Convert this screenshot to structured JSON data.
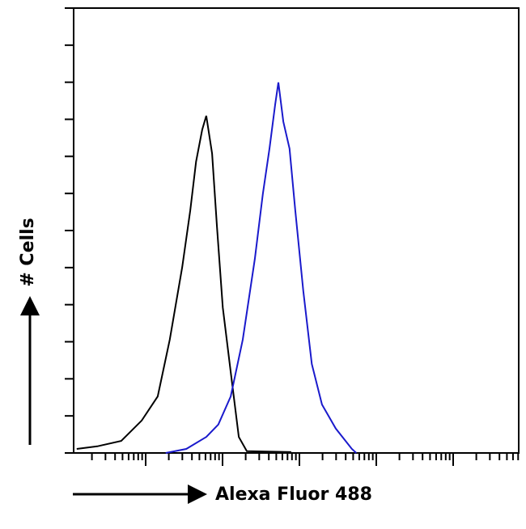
{
  "chart_data": {
    "type": "line",
    "x_label": "Alexa Fluor 488",
    "y_label": "# Cells",
    "xlim": [
      0,
      100
    ],
    "ylim": [
      0,
      100
    ],
    "series": [
      {
        "color": "#000000",
        "x": [
          0.7,
          5.3,
          10.7,
          15.3,
          18.9,
          21.6,
          24.4,
          26.2,
          27.5,
          28.9,
          29.8,
          31.1,
          32.2,
          33.5,
          35.3,
          37.1,
          38.9,
          48.9
        ],
        "values": [
          0.9,
          1.5,
          2.7,
          7.3,
          12.7,
          25.5,
          41.8,
          54.5,
          65.5,
          72.7,
          75.8,
          67.3,
          50.9,
          32.7,
          18.2,
          3.6,
          0.4,
          0.2
        ]
      },
      {
        "color": "#1a1acc",
        "x": [
          20.7,
          25.3,
          29.8,
          32.5,
          35.3,
          38,
          40.7,
          42.5,
          44,
          45.3,
          46,
          47.1,
          48.5,
          49.8,
          51.6,
          53.5,
          55.8,
          58.9,
          62.5,
          63.5
        ],
        "values": [
          0,
          0.9,
          3.6,
          6.4,
          12.7,
          25.5,
          43.6,
          58.2,
          68.4,
          78.4,
          83.3,
          74.5,
          68.4,
          54.5,
          36.4,
          20,
          10.9,
          5.5,
          0.9,
          0
        ]
      }
    ]
  }
}
